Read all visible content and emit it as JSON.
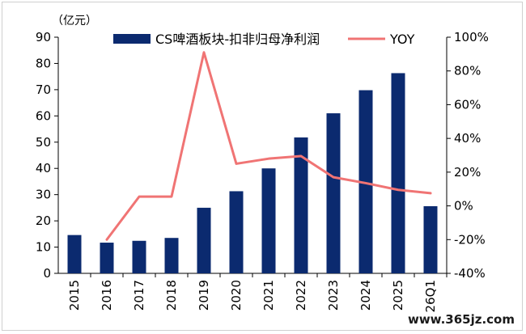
{
  "chart_data": {
    "type": "bar",
    "unit_label": "（亿元）",
    "categories": [
      "2015",
      "2016",
      "2017",
      "2018",
      "2019",
      "2020",
      "2021",
      "2022",
      "2023",
      "2024",
      "2025",
      "26Q1"
    ],
    "series": [
      {
        "name": "CS啤酒板块-扣非归母净利润",
        "type": "bar",
        "axis": "left",
        "color": "#0b2a6f",
        "values": [
          14.6,
          11.7,
          12.4,
          13.5,
          25.0,
          31.3,
          40.0,
          51.8,
          61.0,
          69.8,
          76.3,
          25.6
        ]
      },
      {
        "name": "YOY",
        "type": "line",
        "axis": "right",
        "color": "#f07474",
        "values": [
          null,
          -20,
          5.5,
          5.5,
          91,
          25,
          28,
          29.5,
          17,
          13.5,
          9.5,
          7.5
        ]
      }
    ],
    "y_left": {
      "min": 0,
      "max": 90,
      "step": 10,
      "ticks": [
        "0",
        "10",
        "20",
        "30",
        "40",
        "50",
        "60",
        "70",
        "80",
        "90"
      ]
    },
    "y_right": {
      "min": -40,
      "max": 100,
      "step": 20,
      "ticks": [
        "-40%",
        "-20%",
        "0%",
        "20%",
        "40%",
        "60%",
        "80%",
        "100%"
      ]
    },
    "grid": false,
    "legend_position": "top"
  },
  "watermark": "www.365jz.com"
}
